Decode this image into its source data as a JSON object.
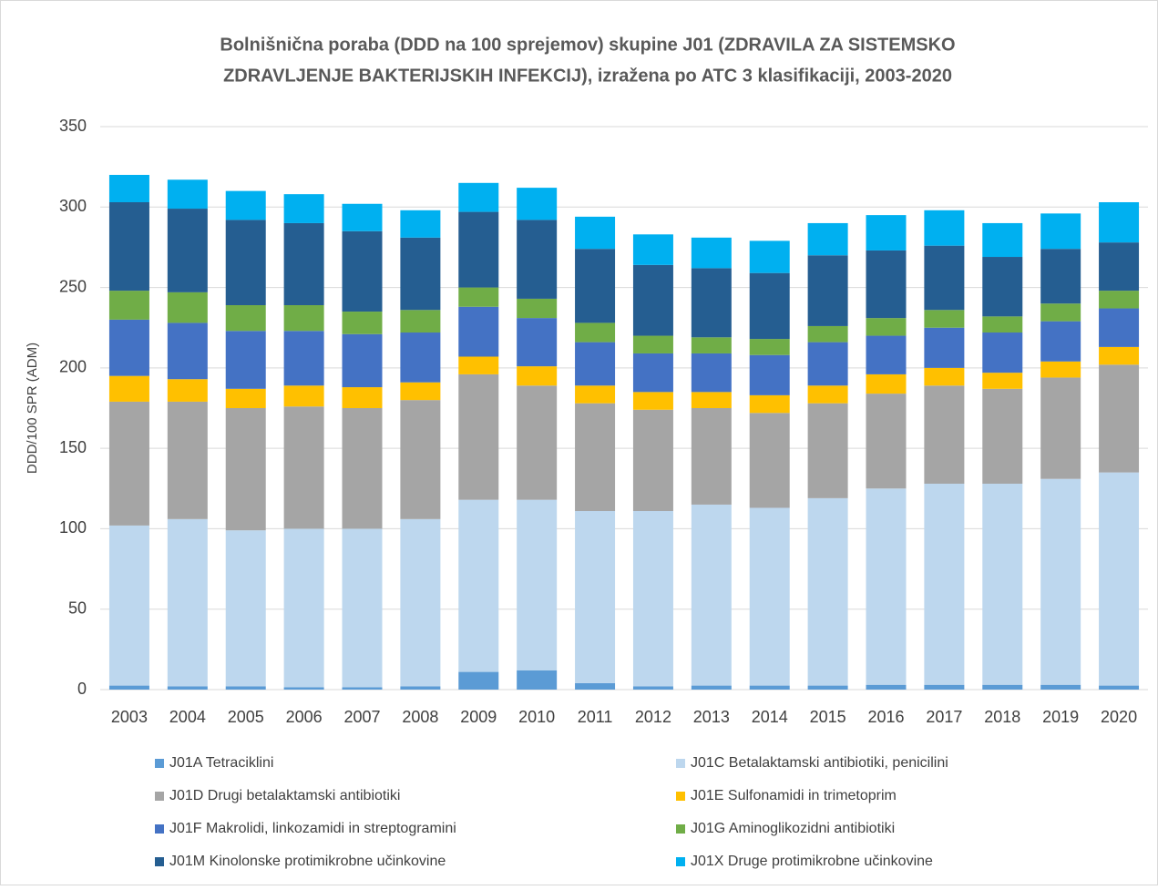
{
  "chart_data": {
    "type": "stacked_bar",
    "title": [
      "Bolnišnična poraba (DDD na 100 sprejemov) skupine J01 (ZDRAVILA ZA SISTEMSKO",
      "ZDRAVLJENJE BAKTERIJSKIH INFEKCIJ), izražena po ATC 3 klasifikaciji, 2003-2020"
    ],
    "ylabel": "DDD/100 SPR (ADM)",
    "categories": [
      "2003",
      "2004",
      "2005",
      "2006",
      "2007",
      "2008",
      "2009",
      "2010",
      "2011",
      "2012",
      "2013",
      "2014",
      "2015",
      "2016",
      "2017",
      "2018",
      "2019",
      "2020"
    ],
    "series": [
      {
        "name": "J01A Tetraciklini",
        "color": "#5b9bd5",
        "values": [
          2.5,
          2,
          2,
          1.5,
          1.5,
          2,
          11,
          12,
          4,
          2,
          2.5,
          2.5,
          2.5,
          3,
          3,
          3,
          3,
          2.5
        ]
      },
      {
        "name": "J01C Betalaktamski antibiotiki, penicilini",
        "color": "#bdd7ee",
        "values": [
          99.5,
          104,
          97,
          98.5,
          98.5,
          104,
          107,
          106,
          107,
          109,
          112.5,
          110.5,
          116.5,
          122,
          125,
          125,
          128,
          132.5
        ]
      },
      {
        "name": "J01D Drugi betalaktamski antibiotiki",
        "color": "#a5a5a5",
        "values": [
          77,
          73,
          76,
          76,
          75,
          74,
          78,
          71,
          67,
          63,
          60,
          59,
          59,
          59,
          61,
          59,
          63,
          67
        ]
      },
      {
        "name": "J01E Sulfonamidi in trimetoprim",
        "color": "#ffc000",
        "values": [
          16,
          14,
          12,
          13,
          13,
          11,
          11,
          12,
          11,
          11,
          10,
          11,
          11,
          12,
          11,
          10,
          10,
          11
        ]
      },
      {
        "name": "J01F Makrolidi, linkozamidi in streptogramini",
        "color": "#4472c4",
        "values": [
          35,
          35,
          36,
          34,
          33,
          31,
          31,
          30,
          27,
          24,
          24,
          25,
          27,
          24,
          25,
          25,
          25,
          24
        ]
      },
      {
        "name": "J01G Aminoglikozidni antibiotiki",
        "color": "#70ad47",
        "values": [
          18,
          19,
          16,
          16,
          14,
          14,
          12,
          12,
          12,
          11,
          10,
          10,
          10,
          11,
          11,
          10,
          11,
          11
        ]
      },
      {
        "name": "J01M Kinolonske protimikrobne učinkovine",
        "color": "#255e91",
        "values": [
          55,
          52,
          53,
          51,
          50,
          45,
          47,
          49,
          46,
          44,
          43,
          41,
          44,
          42,
          40,
          37,
          34,
          30
        ]
      },
      {
        "name": "J01X Druge protimikrobne učinkovine",
        "color": "#00b0f0",
        "values": [
          17,
          18,
          18,
          18,
          17,
          17,
          18,
          20,
          20,
          19,
          19,
          20,
          20,
          22,
          22,
          21,
          22,
          25
        ]
      }
    ],
    "ylim": [
      0,
      350
    ],
    "yticks": [
      0,
      50,
      100,
      150,
      200,
      250,
      300,
      350
    ],
    "grid": true
  }
}
